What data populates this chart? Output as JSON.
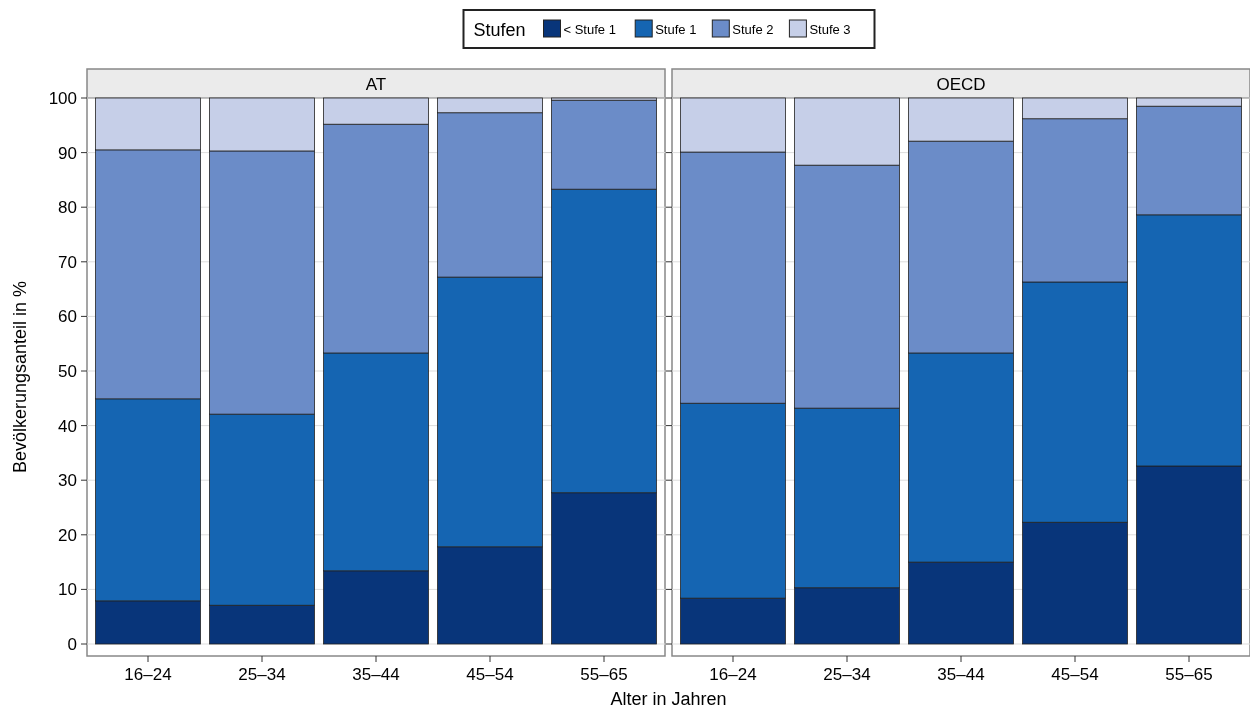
{
  "chart_data": [
    {
      "type": "bar",
      "title": "AT",
      "xlabel": "Alter in Jahren",
      "ylabel": "Bevölkerungsanteil in %",
      "legend_title": "Stufen",
      "legend": "top",
      "stacked": true,
      "grid": true,
      "categories": [
        "16–24",
        "25–34",
        "35–44",
        "45–54",
        "55–65"
      ],
      "ylim": [
        0,
        100
      ],
      "yticks": [
        0,
        10,
        20,
        30,
        40,
        50,
        60,
        70,
        80,
        90,
        100
      ],
      "series": [
        {
          "name": "< Stufe 1",
          "color": "#08357a",
          "values": [
            7.9,
            7.1,
            13.4,
            17.8,
            27.7
          ]
        },
        {
          "name": "Stufe 1",
          "color": "#1565b2",
          "values": [
            37.0,
            35.0,
            39.9,
            49.4,
            55.6
          ]
        },
        {
          "name": "Stufe 2",
          "color": "#6b8cc8",
          "values": [
            45.6,
            48.2,
            41.9,
            30.1,
            16.3
          ]
        },
        {
          "name": "Stufe 3",
          "color": "#c6cfe8",
          "values": [
            9.5,
            9.7,
            4.8,
            2.7,
            0.4
          ]
        }
      ]
    },
    {
      "type": "bar",
      "title": "OECD",
      "stacked": true,
      "grid": true,
      "tick_labels": "x",
      "categories": [
        "16–24",
        "25–34",
        "35–44",
        "45–54",
        "55–65"
      ],
      "ylim": [
        0,
        100
      ],
      "yticks": [
        0,
        10,
        20,
        30,
        40,
        50,
        60,
        70,
        80,
        90,
        100
      ],
      "series": [
        {
          "color": "#08357a",
          "values": [
            8.4,
            10.3,
            15.0,
            22.3,
            32.6
          ]
        },
        {
          "color": "#1565b2",
          "values": [
            35.7,
            32.9,
            38.3,
            44.0,
            46.0
          ]
        },
        {
          "color": "#6b8cc8",
          "values": [
            46.0,
            44.5,
            38.8,
            29.9,
            19.9
          ]
        },
        {
          "color": "#c6cfe8",
          "values": [
            9.9,
            12.3,
            7.9,
            3.8,
            1.5
          ]
        }
      ]
    }
  ]
}
